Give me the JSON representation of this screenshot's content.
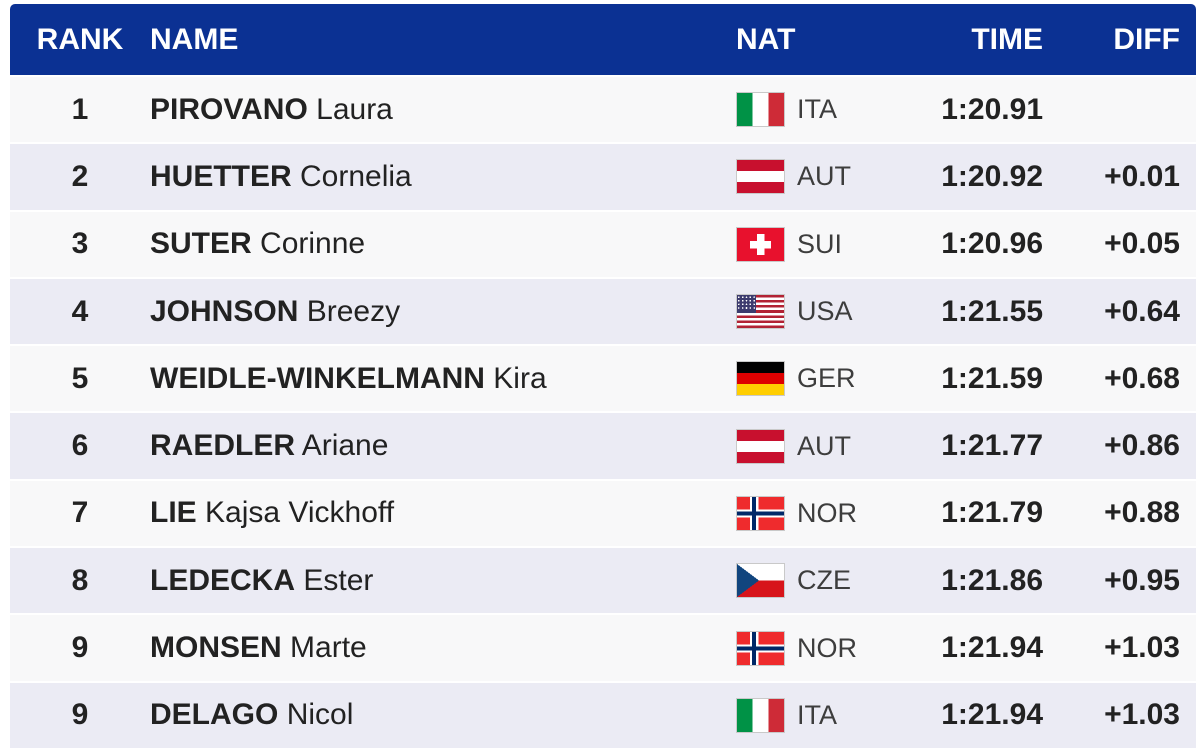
{
  "table": {
    "columns": [
      {
        "key": "rank",
        "label": "RANK"
      },
      {
        "key": "name",
        "label": "NAME"
      },
      {
        "key": "nat",
        "label": "NAT"
      },
      {
        "key": "time",
        "label": "TIME"
      },
      {
        "key": "diff",
        "label": "DIFF"
      }
    ],
    "rows": [
      {
        "rank": "1",
        "surname": "PIROVANO",
        "given": "Laura",
        "nat": "ITA",
        "time": "1:20.91",
        "diff": ""
      },
      {
        "rank": "2",
        "surname": "HUETTER",
        "given": "Cornelia",
        "nat": "AUT",
        "time": "1:20.92",
        "diff": "+0.01"
      },
      {
        "rank": "3",
        "surname": "SUTER",
        "given": "Corinne",
        "nat": "SUI",
        "time": "1:20.96",
        "diff": "+0.05"
      },
      {
        "rank": "4",
        "surname": "JOHNSON",
        "given": "Breezy",
        "nat": "USA",
        "time": "1:21.55",
        "diff": "+0.64"
      },
      {
        "rank": "5",
        "surname": "WEIDLE-WINKELMANN",
        "given": "Kira",
        "nat": "GER",
        "time": "1:21.59",
        "diff": "+0.68"
      },
      {
        "rank": "6",
        "surname": "RAEDLER",
        "given": "Ariane",
        "nat": "AUT",
        "time": "1:21.77",
        "diff": "+0.86"
      },
      {
        "rank": "7",
        "surname": "LIE",
        "given": "Kajsa Vickhoff",
        "nat": "NOR",
        "time": "1:21.79",
        "diff": "+0.88"
      },
      {
        "rank": "8",
        "surname": "LEDECKA",
        "given": "Ester",
        "nat": "CZE",
        "time": "1:21.86",
        "diff": "+0.95"
      },
      {
        "rank": "9",
        "surname": "MONSEN",
        "given": "Marte",
        "nat": "NOR",
        "time": "1:21.94",
        "diff": "+1.03"
      },
      {
        "rank": "9",
        "surname": "DELAGO",
        "given": "Nicol",
        "nat": "ITA",
        "time": "1:21.94",
        "diff": "+1.03"
      }
    ]
  },
  "colors": {
    "header_bg": "#0b3193",
    "header_text": "#ffffff",
    "row_odd": "#f8f8f9",
    "row_even": "#ebebf4",
    "text": "#222222",
    "nat_text": "#3d3d3d"
  },
  "flags": {
    "ITA": {
      "type": "vertical",
      "colors": [
        "#009246",
        "#ffffff",
        "#ce2b37"
      ]
    },
    "AUT": {
      "type": "horizontal",
      "colors": [
        "#c8102e",
        "#ffffff",
        "#c8102e"
      ]
    },
    "SUI": {
      "type": "swiss-cross",
      "colors": [
        "#e8112d",
        "#ffffff"
      ]
    },
    "USA": {
      "type": "stars-stripes",
      "colors": [
        "#b22234",
        "#ffffff",
        "#3c3b6e"
      ]
    },
    "GER": {
      "type": "horizontal",
      "colors": [
        "#000000",
        "#dd0000",
        "#ffce00"
      ]
    },
    "NOR": {
      "type": "nordic-cross",
      "colors": [
        "#ef2b2d",
        "#ffffff",
        "#002868"
      ]
    },
    "CZE": {
      "type": "triangle-bicolor",
      "colors": [
        "#ffffff",
        "#d7141a",
        "#11457e"
      ]
    }
  }
}
